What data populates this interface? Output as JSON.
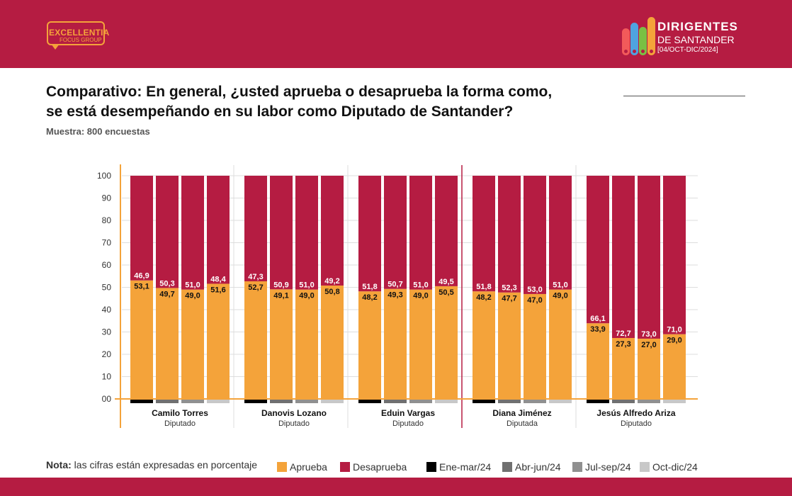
{
  "header": {
    "left_logo": {
      "line1": "EXCELLENTIA",
      "line2": "FOCUS GROUP"
    },
    "right_logo": {
      "line1": "DIRIGENTES",
      "line2": "DE SANTANDER",
      "line3": "[04/OCT-DIC/2024]"
    }
  },
  "title_line1": "Comparativo: En general, ¿usted aprueba o desaprueba la forma como,",
  "title_line2": "se está desempeñando en su labor como Diputado de Santander?",
  "subtitle": "Muestra: 800 encuestas",
  "footer": {
    "nota_label": "Nota:",
    "nota_text": "las cifras están expresadas en porcentaje"
  },
  "legend": [
    {
      "label": "Aprueba",
      "color": "#f4a33a"
    },
    {
      "label": "Desaprueba",
      "color": "#b51c42"
    },
    {
      "label": "Ene-mar/24",
      "color": "#000000"
    },
    {
      "label": "Abr-jun/24",
      "color": "#707070"
    },
    {
      "label": "Jul-sep/24",
      "color": "#909090"
    },
    {
      "label": "Oct-dic/24",
      "color": "#c8c8c8"
    }
  ],
  "chart_data": {
    "type": "bar",
    "stacked": true,
    "ylim": [
      0,
      100
    ],
    "yticks": [
      "00",
      "10",
      "20",
      "30",
      "40",
      "50",
      "60",
      "70",
      "80",
      "90",
      "100"
    ],
    "periods": [
      "Ene-mar/24",
      "Abr-jun/24",
      "Jul-sep/24",
      "Oct-dic/24"
    ],
    "period_colors": [
      "#000000",
      "#707070",
      "#909090",
      "#c8c8c8"
    ],
    "series_colors": {
      "Aprueba": "#f4a33a",
      "Desaprueba": "#b51c42"
    },
    "groups": [
      {
        "name": "Camilo Torres",
        "role": "Diputado",
        "aprueba": [
          53.1,
          49.7,
          49.0,
          51.6
        ],
        "desaprueba": [
          46.9,
          50.3,
          51.0,
          48.4
        ],
        "aprueba_labels": [
          "53,1",
          "49,7",
          "49,0",
          "51,6"
        ],
        "desaprueba_labels": [
          "46,9",
          "50,3",
          "51,0",
          "48,4"
        ]
      },
      {
        "name": "Danovis Lozano",
        "role": "Diputado",
        "aprueba": [
          52.7,
          49.1,
          49.0,
          50.8
        ],
        "desaprueba": [
          47.3,
          50.9,
          51.0,
          49.2
        ],
        "aprueba_labels": [
          "52,7",
          "49,1",
          "49,0",
          "50,8"
        ],
        "desaprueba_labels": [
          "47,3",
          "50,9",
          "51,0",
          "49,2"
        ]
      },
      {
        "name": "Eduin Vargas",
        "role": "Diputado",
        "aprueba": [
          48.2,
          49.3,
          49.0,
          50.5
        ],
        "desaprueba": [
          51.8,
          50.7,
          51.0,
          49.5
        ],
        "aprueba_labels": [
          "48,2",
          "49,3",
          "49,0",
          "50,5"
        ],
        "desaprueba_labels": [
          "51,8",
          "50,7",
          "51,0",
          "49,5"
        ]
      },
      {
        "name": "Diana Jiménez",
        "role": "Diputada",
        "aprueba": [
          48.2,
          47.7,
          47.0,
          49.0
        ],
        "desaprueba": [
          51.8,
          52.3,
          53.0,
          51.0
        ],
        "aprueba_labels": [
          "48,2",
          "47,7",
          "47,0",
          "49,0"
        ],
        "desaprueba_labels": [
          "51,8",
          "52,3",
          "53,0",
          "51,0"
        ]
      },
      {
        "name": "Jesús Alfredo Ariza",
        "role": "Diputado",
        "aprueba": [
          33.9,
          27.3,
          27.0,
          29.0
        ],
        "desaprueba": [
          66.1,
          72.7,
          73.0,
          71.0
        ],
        "aprueba_labels": [
          "33,9",
          "27,3",
          "27,0",
          "29,0"
        ],
        "desaprueba_labels": [
          "66,1",
          "72,7",
          "73,0",
          "71,0"
        ]
      }
    ]
  }
}
